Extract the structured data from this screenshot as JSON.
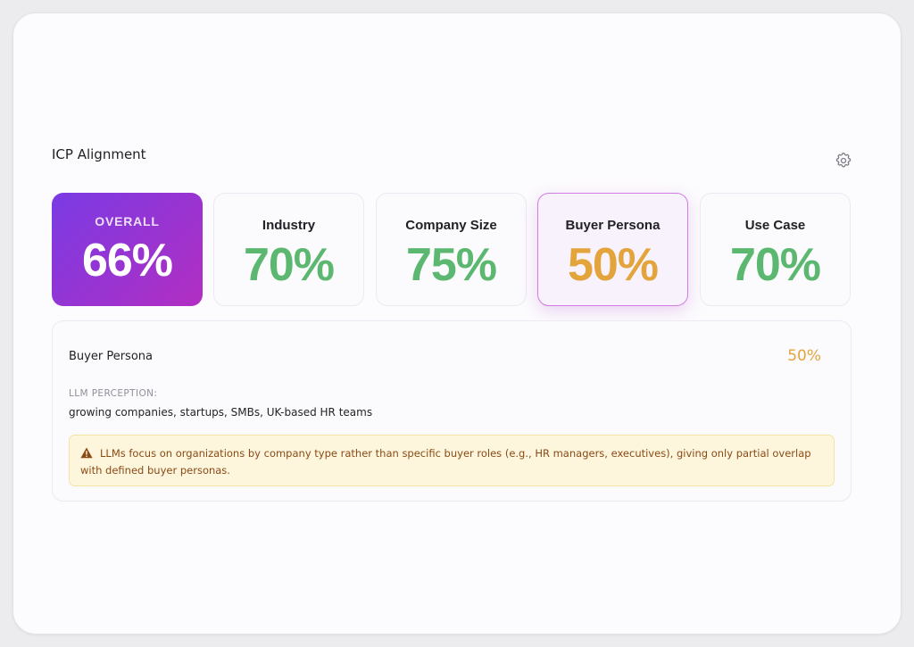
{
  "section": {
    "title": "ICP Alignment",
    "settings_icon": "gear-icon"
  },
  "cards": {
    "overall": {
      "label": "OVERALL",
      "value": "66%",
      "gradient": [
        "#7a3be4",
        "#b22ec2"
      ]
    },
    "industry": {
      "label": "Industry",
      "value": "70%",
      "color": "#5cb870"
    },
    "company_size": {
      "label": "Company Size",
      "value": "75%",
      "color": "#5cb870"
    },
    "buyer_persona": {
      "label": "Buyer Persona",
      "value": "50%",
      "color": "#e4a43c",
      "selected": true
    },
    "use_case": {
      "label": "Use Case",
      "value": "70%",
      "color": "#5cb870"
    }
  },
  "detail": {
    "title": "Buyer Persona",
    "score": "50%",
    "perception_label": "LLM PERCEPTION:",
    "perception_text": "growing companies, startups, SMBs, UK-based HR teams",
    "warning_icon": "warning-triangle-icon",
    "warning_text": "LLMs focus on organizations by company type rather than specific buyer roles (e.g., HR managers, executives), giving only partial overlap with defined buyer personas."
  }
}
